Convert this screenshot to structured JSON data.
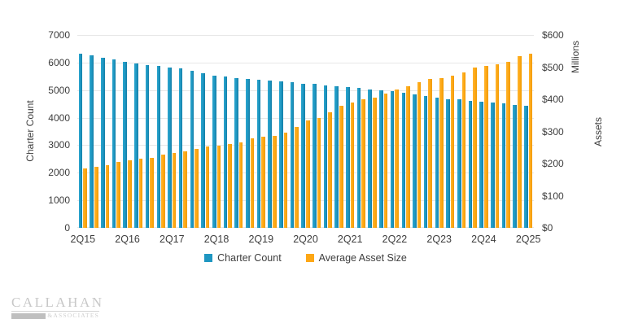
{
  "chart_data": {
    "type": "bar",
    "x_tick_labels": [
      "2Q15",
      "2Q16",
      "2Q17",
      "2Q18",
      "2Q19",
      "2Q20",
      "2Q21",
      "2Q22",
      "2Q23",
      "2Q24",
      "2Q25"
    ],
    "tick_interval": 4,
    "series": [
      {
        "name": "Charter Count",
        "axis": "left",
        "color": "#1E96C1",
        "values": [
          6327,
          6258,
          6177,
          6117,
          6036,
          5976,
          5916,
          5868,
          5827,
          5778,
          5690,
          5604,
          5535,
          5505,
          5433,
          5403,
          5373,
          5334,
          5304,
          5274,
          5235,
          5214,
          5184,
          5133,
          5103,
          5085,
          5034,
          4995,
          4965,
          4893,
          4854,
          4786,
          4726,
          4675,
          4655,
          4607,
          4577,
          4547,
          4505,
          4457,
          4427
        ]
      },
      {
        "name": "Average Asset Size",
        "axis": "right",
        "color": "#FDA715",
        "values": [
          184,
          190,
          196,
          204,
          209,
          215,
          219,
          228,
          233,
          237,
          245,
          253,
          256,
          260,
          266,
          279,
          283,
          287,
          296,
          313,
          334,
          342,
          359,
          380,
          391,
          401,
          406,
          418,
          430,
          441,
          452,
          463,
          467,
          474,
          484,
          499,
          503,
          510,
          516,
          535,
          542
        ]
      }
    ],
    "left_axis": {
      "title": "Charter Count",
      "min": 0,
      "max": 7000,
      "tick_labels": [
        "7000",
        "6000",
        "5000",
        "4000",
        "3000",
        "2000",
        "1000",
        "0"
      ]
    },
    "right_axis": {
      "title": "Assets",
      "unit_label": "Millions",
      "min": 0,
      "max": 600,
      "tick_labels": [
        "$600",
        "$500",
        "$400",
        "$300",
        "$200",
        "$100",
        "$0"
      ]
    },
    "grid": true,
    "legend_position": "bottom"
  },
  "logo": {
    "name": "CALLAHAN",
    "sub": "&ASSOCIATES"
  },
  "colors": {
    "blue": "#1E96C1",
    "orange": "#FDA715",
    "grid": "#E7E7E7",
    "text": "#3D3D3D",
    "logo_gray": "#C8C8C8"
  }
}
